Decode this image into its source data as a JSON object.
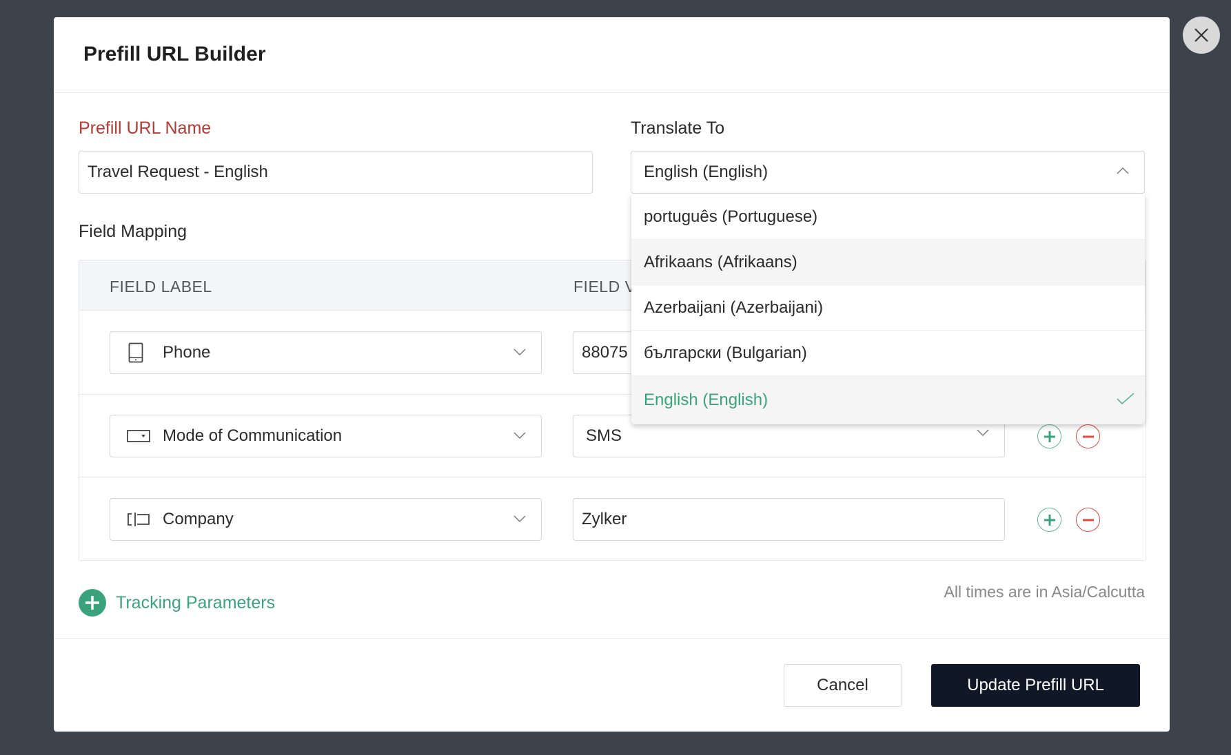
{
  "modal": {
    "title": "Prefill URL Builder",
    "close_icon": "close-icon"
  },
  "form": {
    "name_label": "Prefill URL Name",
    "name_value": "Travel Request - English",
    "translate_label": "Translate To",
    "translate_value": "English (English)"
  },
  "field_mapping": {
    "title": "Field Mapping",
    "columns": [
      "FIELD LABEL",
      "FIELD V"
    ],
    "rows": [
      {
        "label": "Phone",
        "icon": "phone-icon",
        "value": "88075",
        "value_type": "text"
      },
      {
        "label": "Mode of Communication",
        "icon": "dropdown-field-icon",
        "value": "SMS",
        "value_type": "select"
      },
      {
        "label": "Company",
        "icon": "single-line-icon",
        "value": "Zylker",
        "value_type": "text"
      }
    ]
  },
  "dropdown": {
    "options": [
      "português (Portuguese)",
      "Afrikaans (Afrikaans)",
      "Azerbaijani (Azerbaijani)",
      "български (Bulgarian)",
      "English (English)"
    ],
    "selected": "English (English)",
    "hovered": "Afrikaans (Afrikaans)"
  },
  "tracking": {
    "label": "Tracking Parameters"
  },
  "timezone_note": "All times are in Asia/Calcutta",
  "footer": {
    "cancel": "Cancel",
    "submit": "Update Prefill URL"
  },
  "colors": {
    "accent": "#3aa37d",
    "required": "#c0392b",
    "danger": "#e04a3f",
    "primary": "#101828",
    "overlay": "#3d434b"
  }
}
